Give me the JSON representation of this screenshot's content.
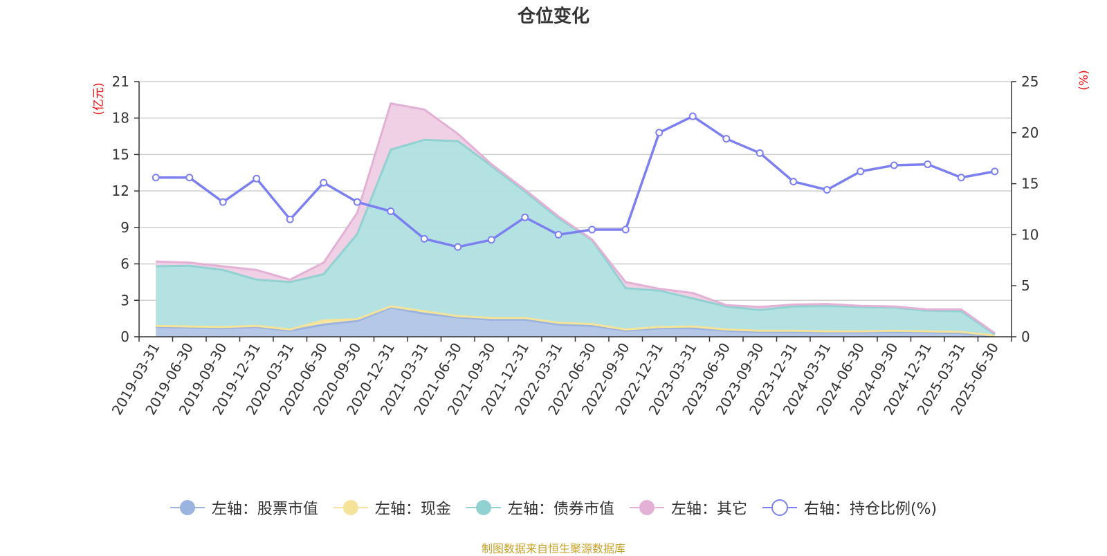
{
  "source_note": "制图数据来自恒生聚源数据库",
  "colors": {
    "stock": "#b2c5e7",
    "stock_line": "#9ab3df",
    "cash": "#f7e7a1",
    "cash_line": "#f5e39a",
    "bond": "#b0e0e0",
    "bond_line": "#92d1d1",
    "other": "#eecde4",
    "other_line": "#e3b1d6",
    "ratio": "#7b7ff0",
    "axis_unit": "#ee1111",
    "title": "#333333",
    "source_note": "#c9a227"
  },
  "chart_data": {
    "type": "area",
    "title": "仓位变化",
    "y_left_label": "(亿元)",
    "y_right_label": "(%)",
    "y_left_range": [
      0,
      21
    ],
    "y_left_ticks": [
      "0",
      "3",
      "6",
      "9",
      "12",
      "15",
      "18",
      "21"
    ],
    "y_right_range": [
      0,
      25
    ],
    "y_right_ticks": [
      "0",
      "5",
      "10",
      "15",
      "20",
      "25"
    ],
    "grid": true,
    "legend_position": "bottom",
    "categories": [
      "2019-03-31",
      "2019-06-30",
      "2019-09-30",
      "2019-12-31",
      "2020-03-31",
      "2020-06-30",
      "2020-09-30",
      "2020-12-31",
      "2021-03-31",
      "2021-06-30",
      "2021-09-30",
      "2021-12-31",
      "2022-03-31",
      "2022-06-30",
      "2022-09-30",
      "2022-12-31",
      "2023-03-31",
      "2023-06-30",
      "2023-09-30",
      "2023-12-31",
      "2024-03-31",
      "2024-06-30",
      "2024-09-30",
      "2024-12-31",
      "2025-03-31",
      "2025-06-30"
    ],
    "series": [
      {
        "name": "左轴：股票市值",
        "axis": "left",
        "stack": true,
        "kind": "area",
        "values": [
          0.8,
          0.75,
          0.7,
          0.8,
          0.5,
          1.0,
          1.3,
          2.4,
          1.9,
          1.6,
          1.4,
          1.4,
          1.0,
          0.9,
          0.5,
          0.7,
          0.7,
          0.5,
          0.4,
          0.4,
          0.35,
          0.35,
          0.4,
          0.35,
          0.3,
          0.05
        ]
      },
      {
        "name": "左轴：现金",
        "axis": "left",
        "stack": true,
        "kind": "area",
        "values": [
          0.1,
          0.1,
          0.1,
          0.1,
          0.1,
          0.35,
          0.15,
          0.1,
          0.2,
          0.1,
          0.15,
          0.15,
          0.15,
          0.15,
          0.1,
          0.1,
          0.15,
          0.1,
          0.1,
          0.1,
          0.1,
          0.1,
          0.1,
          0.1,
          0.1,
          0.05
        ]
      },
      {
        "name": "左轴：债券市值",
        "axis": "left",
        "stack": true,
        "kind": "area",
        "values": [
          4.9,
          5.0,
          4.7,
          3.8,
          3.9,
          3.8,
          7.0,
          12.9,
          14.1,
          14.4,
          12.5,
          10.4,
          8.6,
          6.9,
          3.4,
          3.0,
          2.3,
          1.9,
          1.7,
          2.0,
          2.1,
          2.0,
          1.9,
          1.7,
          1.7,
          0.1
        ]
      },
      {
        "name": "左轴：其它",
        "axis": "left",
        "stack": true,
        "kind": "area",
        "values": [
          0.4,
          0.25,
          0.3,
          0.8,
          0.2,
          0.95,
          1.75,
          3.8,
          2.5,
          0.6,
          0.15,
          0.15,
          0.15,
          0.05,
          0.5,
          0.15,
          0.45,
          0.1,
          0.25,
          0.15,
          0.15,
          0.1,
          0.1,
          0.1,
          0.15,
          0.1
        ]
      },
      {
        "name": "右轴：持仓比例(%)",
        "axis": "right",
        "stack": false,
        "kind": "line",
        "values": [
          15.6,
          15.6,
          13.2,
          15.5,
          11.5,
          15.1,
          13.2,
          12.3,
          9.6,
          8.8,
          9.5,
          11.7,
          10.0,
          10.5,
          10.5,
          20.0,
          21.6,
          19.4,
          18.0,
          15.2,
          14.4,
          16.2,
          16.8,
          16.9,
          15.6,
          16.2
        ]
      }
    ]
  }
}
